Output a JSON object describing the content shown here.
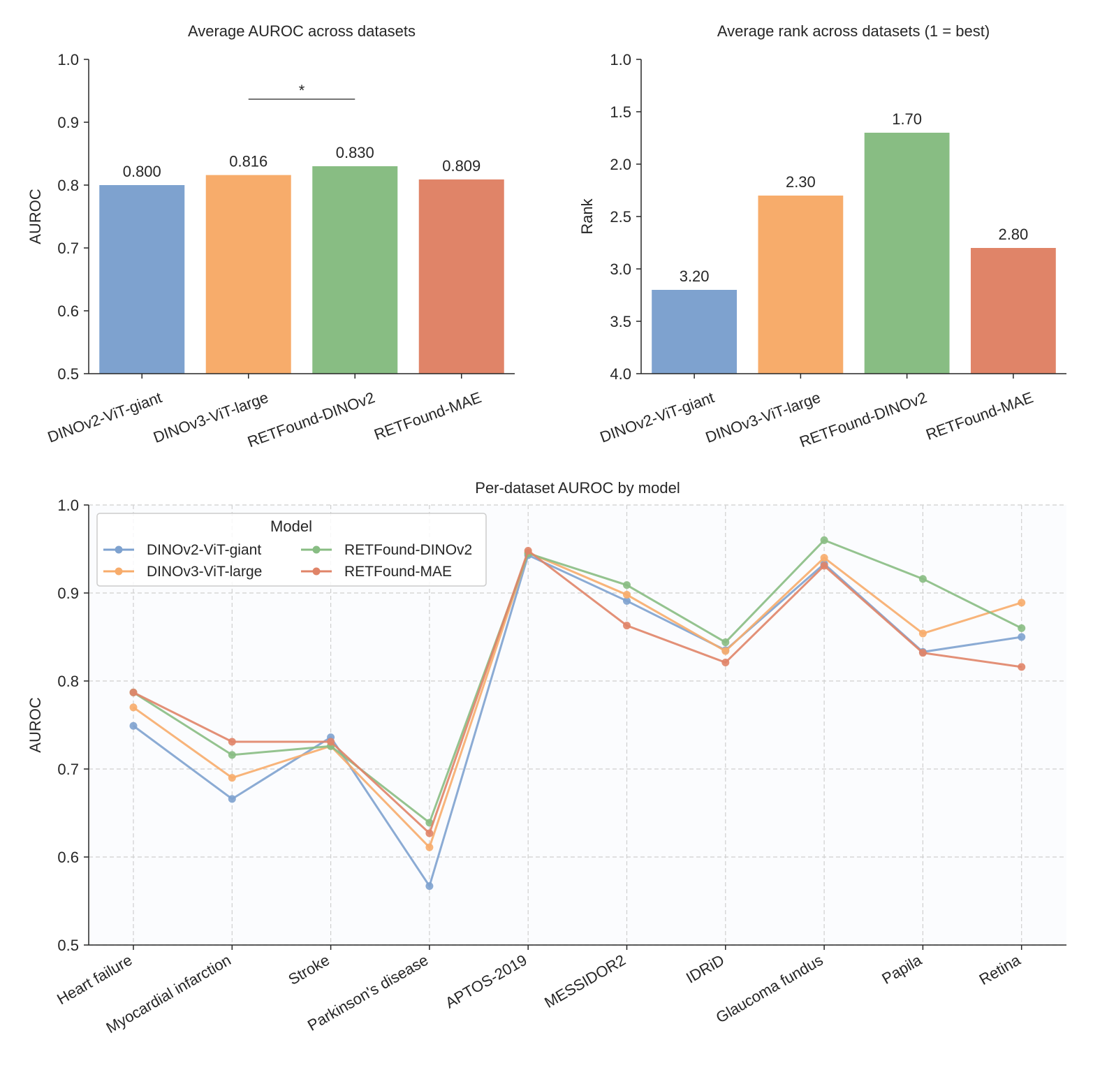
{
  "colors": {
    "DINOv2-ViT-giant": "#7ea2cf",
    "DINOv3-ViT-large": "#f7ac6b",
    "RETFound-DINOv2": "#88bd83",
    "RETFound-MAE": "#e08468"
  },
  "chart_data": [
    {
      "type": "bar",
      "title": "Average AUROC across datasets",
      "ylabel": "AUROC",
      "xlabel": "",
      "categories": [
        "DINOv2-ViT-giant",
        "DINOv3-ViT-large",
        "RETFound-DINOv2",
        "RETFound-MAE"
      ],
      "values": [
        0.8,
        0.816,
        0.83,
        0.809
      ],
      "data_labels": [
        "0.800",
        "0.816",
        "0.830",
        "0.809"
      ],
      "ylim": [
        0.5,
        1.0
      ],
      "yticks": [
        "0.5",
        "0.6",
        "0.7",
        "0.8",
        "0.9",
        "1.0"
      ],
      "annotation": {
        "text": "*",
        "between": [
          "DINOv3-ViT-large",
          "RETFound-DINOv2"
        ]
      },
      "grid": false
    },
    {
      "type": "bar",
      "title": "Average rank across datasets (1 = best)",
      "ylabel": "Rank",
      "xlabel": "",
      "categories": [
        "DINOv2-ViT-giant",
        "DINOv3-ViT-large",
        "RETFound-DINOv2",
        "RETFound-MAE"
      ],
      "values": [
        3.2,
        2.3,
        1.7,
        2.8
      ],
      "data_labels": [
        "3.20",
        "2.30",
        "1.70",
        "2.80"
      ],
      "ylim": [
        4.0,
        1.0
      ],
      "y_inverted": true,
      "yticks": [
        "1.0",
        "1.5",
        "2.0",
        "2.5",
        "3.0",
        "3.5",
        "4.0"
      ],
      "grid": false
    },
    {
      "type": "line",
      "title": "Per-dataset AUROC by model",
      "ylabel": "AUROC",
      "xlabel": "",
      "categories": [
        "Heart failure",
        "Myocardial infarction",
        "Stroke",
        "Parkinson's disease",
        "APTOS-2019",
        "MESSIDOR2",
        "IDRiD",
        "Glaucoma fundus",
        "Papila",
        "Retina"
      ],
      "ylim": [
        0.5,
        1.0
      ],
      "yticks": [
        "0.5",
        "0.6",
        "0.7",
        "0.8",
        "0.9",
        "1.0"
      ],
      "grid": true,
      "legend": {
        "title": "Model",
        "placement": "top-left"
      },
      "series": [
        {
          "name": "DINOv2-ViT-giant",
          "values": [
            0.749,
            0.666,
            0.736,
            0.567,
            0.943,
            0.891,
            0.835,
            0.933,
            0.833,
            0.85
          ]
        },
        {
          "name": "DINOv3-ViT-large",
          "values": [
            0.77,
            0.69,
            0.726,
            0.611,
            0.946,
            0.898,
            0.834,
            0.94,
            0.854,
            0.889
          ]
        },
        {
          "name": "RETFound-DINOv2",
          "values": [
            0.787,
            0.716,
            0.726,
            0.639,
            0.945,
            0.909,
            0.844,
            0.96,
            0.916,
            0.86
          ]
        },
        {
          "name": "RETFound-MAE",
          "values": [
            0.787,
            0.731,
            0.731,
            0.627,
            0.948,
            0.863,
            0.821,
            0.931,
            0.832,
            0.816
          ]
        }
      ]
    }
  ]
}
